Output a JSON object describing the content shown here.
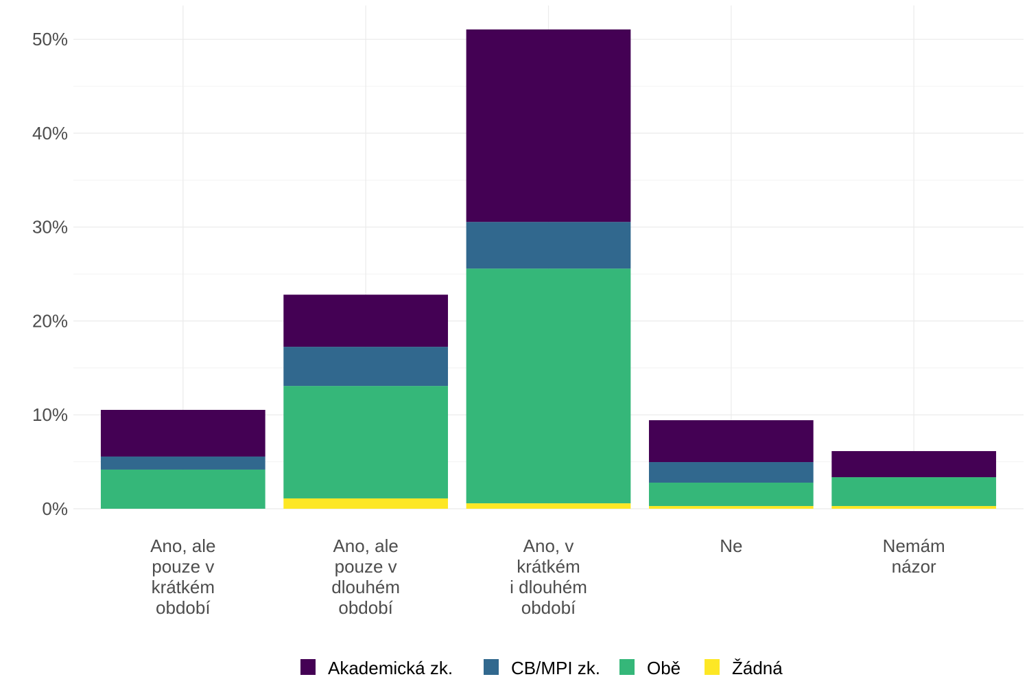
{
  "chart_data": {
    "type": "bar",
    "stacked": true,
    "title": "",
    "xlabel": "",
    "ylabel": "",
    "ylim": [
      0,
      53.6
    ],
    "yticks": [
      0,
      10,
      20,
      30,
      40,
      50
    ],
    "ytick_labels": [
      "0%",
      "10%",
      "20%",
      "30%",
      "40%",
      "50%"
    ],
    "grid": true,
    "legend_position": "bottom",
    "categories": [
      [
        "Ano, ale",
        "pouze v",
        "krátkém",
        "období"
      ],
      [
        "Ano, ale",
        "pouze v",
        "dlouhém",
        "období"
      ],
      [
        "Ano, v",
        "krátkém",
        "i dlouhém",
        "období"
      ],
      [
        "Ne"
      ],
      [
        "Nemám",
        "názor"
      ]
    ],
    "series": [
      {
        "name": "Žádná",
        "color": "#FDE725",
        "values": [
          0,
          1.1,
          0.58,
          0.29,
          0.29
        ]
      },
      {
        "name": "Obě",
        "color": "#35B779",
        "values": [
          4.17,
          11.98,
          25.0,
          2.49,
          3.07
        ]
      },
      {
        "name": "CB/MPI zk.",
        "color": "#31688E",
        "values": [
          1.39,
          4.17,
          4.97,
          2.19,
          0
        ]
      },
      {
        "name": "Akademická zk.",
        "color": "#440154",
        "values": [
          4.97,
          5.55,
          20.5,
          4.46,
          2.78
        ]
      }
    ],
    "legend_order": [
      "Akademická zk.",
      "CB/MPI zk.",
      "Obě",
      "Žádná"
    ]
  }
}
